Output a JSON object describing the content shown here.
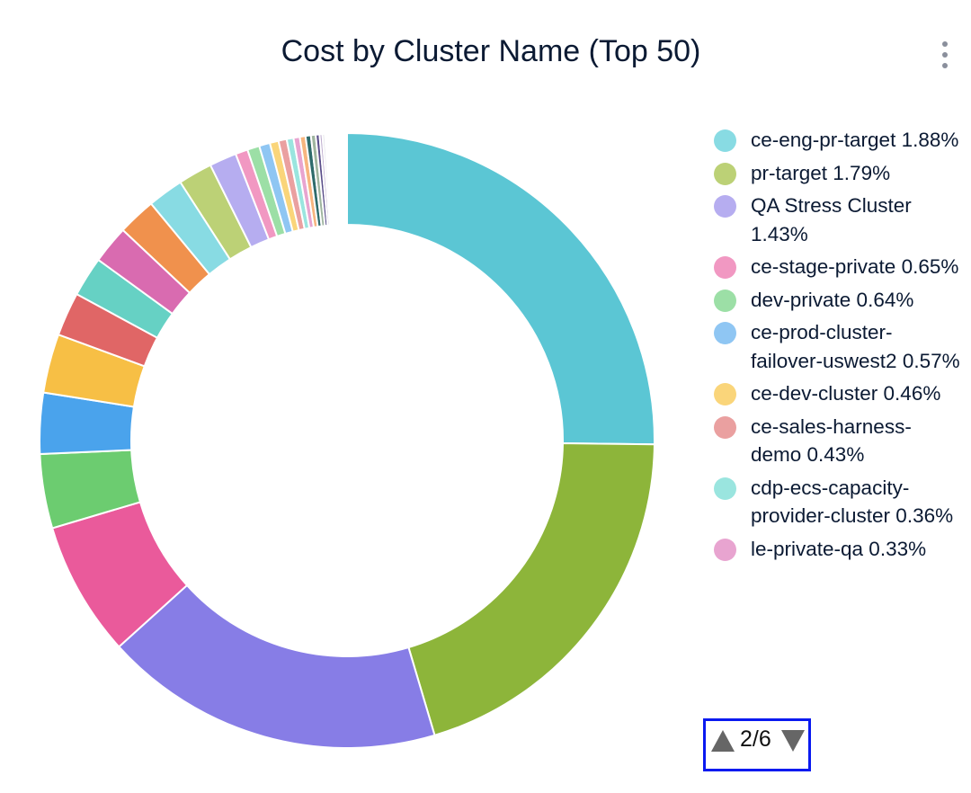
{
  "title": "Cost by Cluster Name (Top 50)",
  "menu_icon": "kebab-menu-icon",
  "chart_data": {
    "type": "pie",
    "variant": "donut",
    "title": "Cost by Cluster Name (Top 50)",
    "start": "top",
    "direction": "clockwise",
    "unit": "%",
    "slices": [
      {
        "value": 25.2,
        "color": "#5bc6d4"
      },
      {
        "value": 20.2,
        "color": "#8db53a"
      },
      {
        "value": 17.9,
        "color": "#877de6"
      },
      {
        "value": 7.1,
        "color": "#ea5a9b"
      },
      {
        "value": 3.9,
        "color": "#6ccc70"
      },
      {
        "value": 3.2,
        "color": "#4aa3ec"
      },
      {
        "value": 3.1,
        "color": "#f7bf45"
      },
      {
        "value": 2.3,
        "color": "#e06666"
      },
      {
        "value": 2.1,
        "color": "#66d1c4"
      },
      {
        "value": 2.0,
        "color": "#d96bb0"
      },
      {
        "value": 2.0,
        "color": "#f0914d"
      },
      {
        "name": "ce-eng-pr-target",
        "value": 1.88,
        "color": "#88dbe3"
      },
      {
        "name": "pr-target",
        "value": 1.79,
        "color": "#bcd176"
      },
      {
        "name": "QA Stress Cluster",
        "value": 1.43,
        "color": "#b6adf0"
      },
      {
        "name": "ce-stage-private",
        "value": 0.65,
        "color": "#f198c2"
      },
      {
        "name": "dev-private",
        "value": 0.64,
        "color": "#9cdfa6"
      },
      {
        "name": "ce-prod-cluster-failover-uswest2",
        "value": 0.57,
        "color": "#8fc6f3"
      },
      {
        "name": "ce-dev-cluster",
        "value": 0.46,
        "color": "#fad57a"
      },
      {
        "name": "ce-sales-harness-demo",
        "value": 0.43,
        "color": "#eaa0a0"
      },
      {
        "name": "cdp-ecs-capacity-provider-cluster",
        "value": 0.36,
        "color": "#9ae5df"
      },
      {
        "name": "le-private-qa",
        "value": 0.33,
        "color": "#e8a4d0"
      },
      {
        "value": 0.3,
        "color": "#f7b57f"
      },
      {
        "value": 0.28,
        "color": "#2e6b6b"
      },
      {
        "value": 0.25,
        "color": "#9fb59f"
      },
      {
        "value": 0.2,
        "color": "#5a4e8a"
      },
      {
        "value": 0.15,
        "color": "#c0b0d0"
      },
      {
        "value": 0.12,
        "color": "#d8d8e0"
      }
    ],
    "legend": {
      "placement": "right",
      "items": [
        {
          "label": "ce-eng-pr-target 1.88%",
          "color": "#88dbe3"
        },
        {
          "label": "pr-target 1.79%",
          "color": "#bcd176"
        },
        {
          "label": "QA Stress Cluster 1.43%",
          "color": "#b6adf0"
        },
        {
          "label": "ce-stage-private 0.65%",
          "color": "#f198c2"
        },
        {
          "label": "dev-private 0.64%",
          "color": "#9cdfa6"
        },
        {
          "label": "ce-prod-cluster-failover-uswest2 0.57%",
          "color": "#8fc6f3"
        },
        {
          "label": "ce-dev-cluster 0.46%",
          "color": "#fad57a"
        },
        {
          "label": "ce-sales-harness-demo 0.43%",
          "color": "#eaa0a0"
        },
        {
          "label": "cdp-ecs-capacity-provider-cluster 0.36%",
          "color": "#9ae5df"
        },
        {
          "label": "le-private-qa 0.33%",
          "color": "#e8a4d0"
        }
      ],
      "page": "2/6",
      "prev_icon": "triangle-up-icon",
      "next_icon": "triangle-down-icon",
      "highlight_color": "#0a1af0"
    }
  }
}
